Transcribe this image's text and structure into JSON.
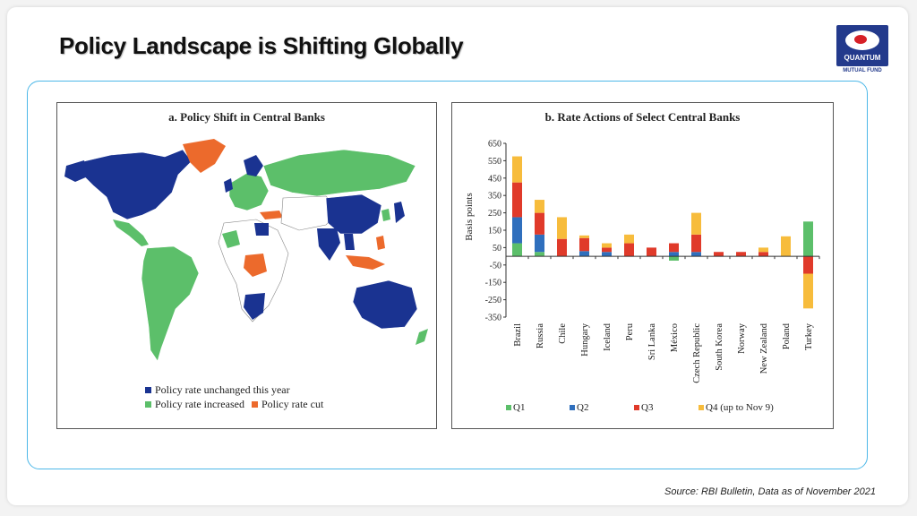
{
  "title": "Policy Landscape is Shifting Globally",
  "logo": {
    "name": "QUANTUM",
    "sub": "MUTUAL FUND"
  },
  "source": "Source: RBI Bulletin, Data as of November 2021",
  "map_panel": {
    "title": "a. Policy Shift in Central Banks",
    "legend": [
      {
        "label": "Policy rate unchanged this year",
        "color": "#1a3391"
      },
      {
        "label": "Policy rate increased",
        "color": "#5cbf6a"
      },
      {
        "label": "Policy rate cut",
        "color": "#ec6a2c"
      }
    ]
  },
  "chart_data": {
    "type": "bar",
    "stacked": true,
    "title": "b. Rate Actions of Select Central Banks",
    "ylabel": "Basis points",
    "ylim": [
      -350,
      650
    ],
    "yticks": [
      650,
      550,
      450,
      350,
      250,
      150,
      50,
      -50,
      -150,
      -250,
      -350
    ],
    "categories": [
      "Brazil",
      "Russia",
      "Chile",
      "Hungary",
      "Iceland",
      "Peru",
      "Sri Lanka",
      "Mexico",
      "Czech Republic",
      "South Korea",
      "Norway",
      "New Zealand",
      "Poland",
      "Turkey"
    ],
    "category_labels": [
      "Brazil",
      "Russia",
      "Chile",
      "Hungary",
      "Iceland",
      "Peru",
      "Sri Lanka",
      "México",
      "Czech Republic",
      "South Korea",
      "Norway",
      "New Zealand",
      "Poland",
      "Turkey"
    ],
    "series": [
      {
        "name": "Q1",
        "color": "#5cbf6a",
        "values": [
          75,
          25,
          0,
          0,
          0,
          0,
          0,
          -25,
          0,
          0,
          0,
          0,
          0,
          200
        ]
      },
      {
        "name": "Q2",
        "color": "#2f6fbd",
        "values": [
          150,
          100,
          0,
          30,
          25,
          0,
          0,
          25,
          25,
          0,
          0,
          0,
          0,
          0
        ]
      },
      {
        "name": "Q3",
        "color": "#e03a2a",
        "values": [
          200,
          125,
          100,
          75,
          25,
          75,
          50,
          50,
          100,
          25,
          25,
          25,
          0,
          -100
        ]
      },
      {
        "name": "Q4 (up to Nov 9)",
        "color": "#f7bc3c",
        "values": [
          150,
          75,
          125,
          15,
          25,
          50,
          0,
          0,
          125,
          0,
          0,
          25,
          115,
          -200
        ]
      }
    ],
    "legend_position": "bottom",
    "grid": false
  }
}
